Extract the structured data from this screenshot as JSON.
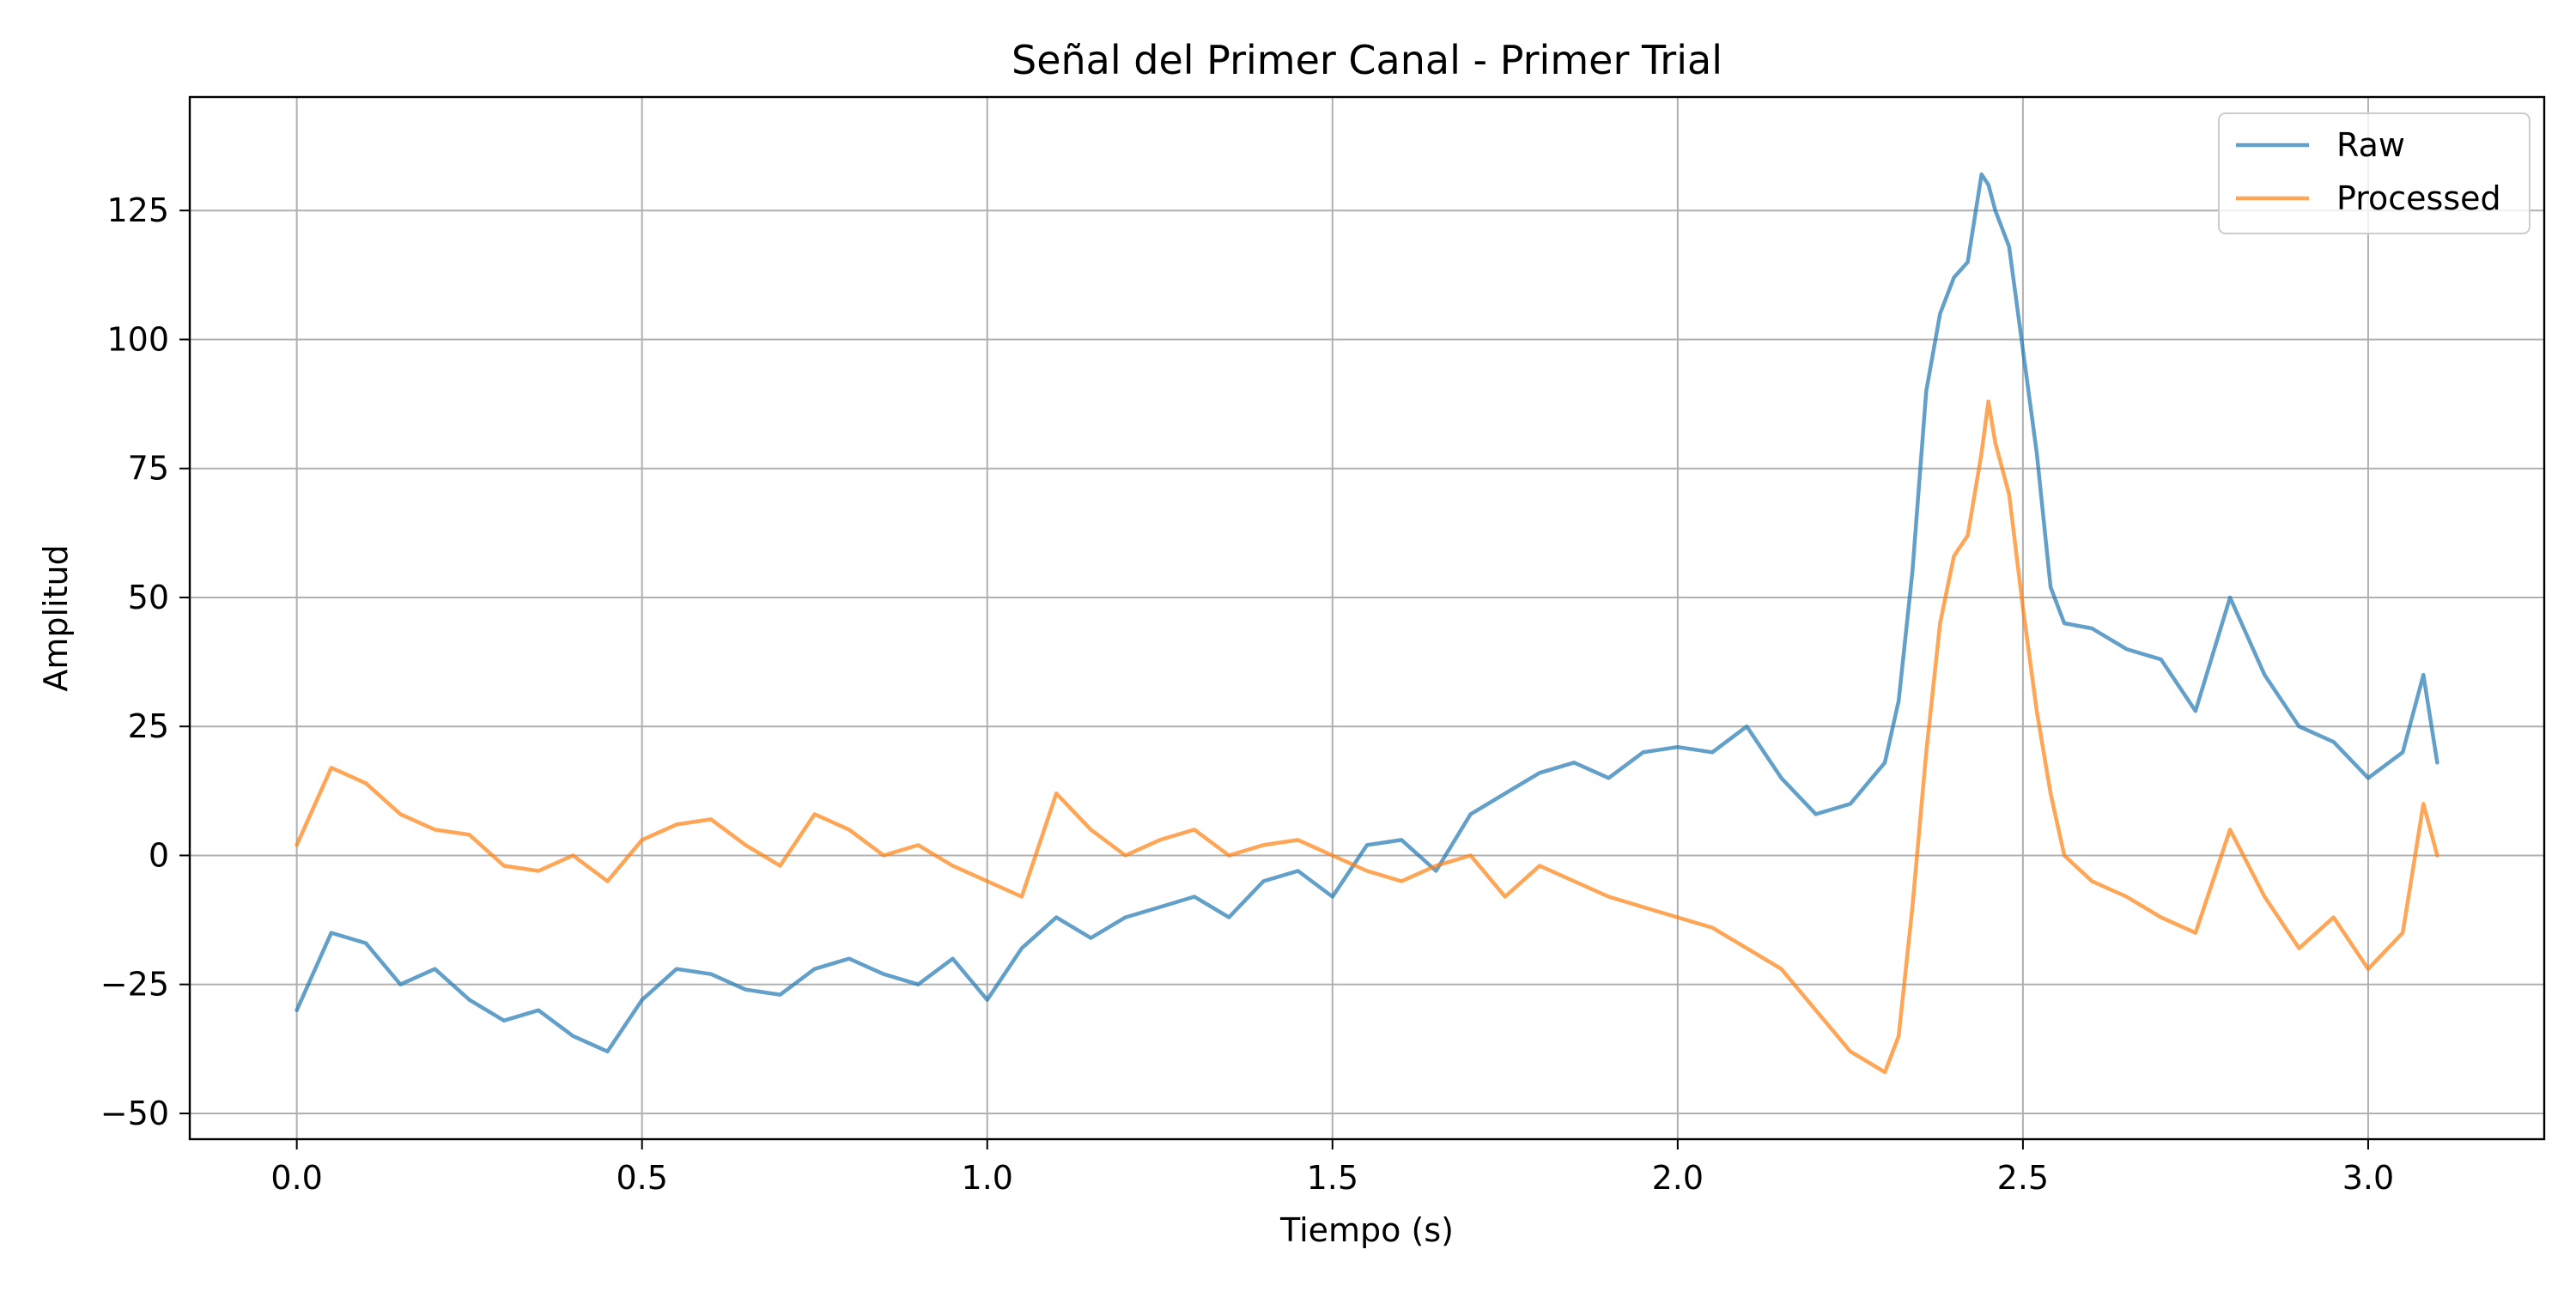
{
  "chart_data": {
    "type": "line",
    "title": "Señal del Primer Canal - Primer Trial",
    "xlabel": "Tiempo (s)",
    "ylabel": "Amplitud",
    "xlim": [
      -0.155,
      3.255
    ],
    "ylim": [
      -55,
      147
    ],
    "x_ticks": [
      0.0,
      0.5,
      1.0,
      1.5,
      2.0,
      2.5,
      3.0
    ],
    "x_tick_labels": [
      "0.0",
      "0.5",
      "1.0",
      "1.5",
      "2.0",
      "2.5",
      "3.0"
    ],
    "y_ticks": [
      -50,
      -25,
      0,
      25,
      50,
      75,
      100,
      125
    ],
    "y_tick_labels": [
      "−50",
      "−25",
      "0",
      "25",
      "50",
      "75",
      "100",
      "125"
    ],
    "grid": true,
    "legend_position": "top-right",
    "x": [
      0.0,
      0.05,
      0.1,
      0.15,
      0.2,
      0.25,
      0.3,
      0.35,
      0.4,
      0.45,
      0.5,
      0.55,
      0.6,
      0.65,
      0.7,
      0.75,
      0.8,
      0.85,
      0.9,
      0.95,
      1.0,
      1.05,
      1.1,
      1.15,
      1.2,
      1.25,
      1.3,
      1.35,
      1.4,
      1.45,
      1.5,
      1.55,
      1.6,
      1.65,
      1.7,
      1.75,
      1.8,
      1.85,
      1.9,
      1.95,
      2.0,
      2.05,
      2.1,
      2.15,
      2.2,
      2.25,
      2.3,
      2.32,
      2.34,
      2.36,
      2.38,
      2.4,
      2.42,
      2.44,
      2.45,
      2.46,
      2.48,
      2.5,
      2.52,
      2.54,
      2.56,
      2.6,
      2.65,
      2.7,
      2.75,
      2.8,
      2.85,
      2.9,
      2.95,
      3.0,
      3.05,
      3.08,
      3.1
    ],
    "series": [
      {
        "name": "Raw",
        "color": "#1f77b4",
        "values": [
          -30,
          -15,
          -17,
          -25,
          -22,
          -28,
          -32,
          -30,
          -35,
          -38,
          -28,
          -22,
          -23,
          -26,
          -27,
          -22,
          -20,
          -23,
          -25,
          -20,
          -28,
          -18,
          -12,
          -16,
          -12,
          -10,
          -8,
          -12,
          -5,
          -3,
          -8,
          2,
          3,
          -3,
          8,
          12,
          16,
          18,
          15,
          20,
          21,
          20,
          25,
          15,
          8,
          10,
          18,
          30,
          55,
          90,
          105,
          112,
          115,
          132,
          130,
          125,
          118,
          98,
          78,
          52,
          45,
          44,
          40,
          38,
          28,
          50,
          35,
          25,
          22,
          15,
          20,
          35,
          18
        ]
      },
      {
        "name": "Processed",
        "color": "#ff7f0e",
        "values": [
          2,
          17,
          14,
          8,
          5,
          4,
          -2,
          -3,
          0,
          -5,
          3,
          6,
          7,
          2,
          -2,
          8,
          5,
          0,
          2,
          -2,
          -5,
          -8,
          12,
          5,
          0,
          3,
          5,
          0,
          2,
          3,
          0,
          -3,
          -5,
          -2,
          0,
          -8,
          -2,
          -5,
          -8,
          -10,
          -12,
          -14,
          -18,
          -22,
          -30,
          -38,
          -42,
          -35,
          -10,
          20,
          45,
          58,
          62,
          78,
          88,
          80,
          70,
          48,
          28,
          12,
          0,
          -5,
          -8,
          -12,
          -15,
          5,
          -8,
          -18,
          -12,
          -22,
          -15,
          10,
          0
        ]
      }
    ]
  }
}
